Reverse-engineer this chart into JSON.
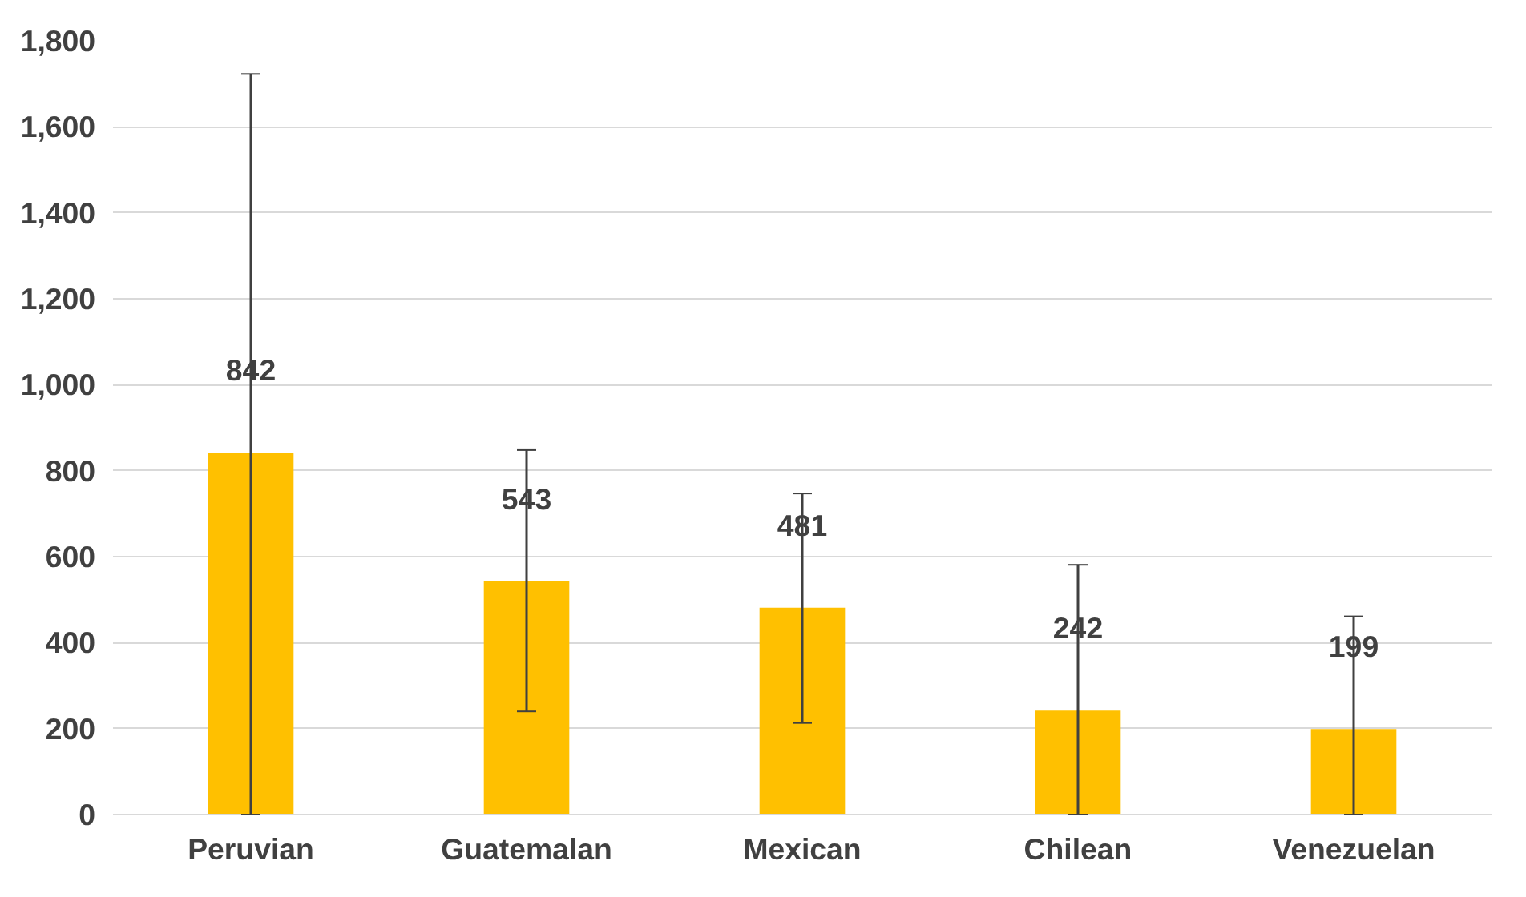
{
  "chart_data": {
    "type": "bar",
    "categories": [
      "Peruvian",
      "Guatemalan",
      "Mexican",
      "Chilean",
      "Venezuelan"
    ],
    "values": [
      842,
      543,
      481,
      242,
      199
    ],
    "errors": [
      [
        0,
        1723
      ],
      [
        240,
        848
      ],
      [
        213,
        747
      ],
      [
        0,
        581
      ],
      [
        0,
        461
      ]
    ],
    "color": "#ffc000",
    "data_labels": true,
    "ylim": [
      0,
      1800
    ],
    "yticks": [
      0,
      {
        "value": 200,
        "label": "200"
      },
      {
        "value": 400,
        "label": "400"
      },
      {
        "value": 600,
        "label": "600"
      },
      {
        "value": 800,
        "label": "800"
      },
      {
        "value": 1000,
        "label": "1,000"
      },
      {
        "value": 1200,
        "label": "1,200"
      },
      {
        "value": 1400,
        "label": "1,400"
      },
      {
        "value": 1600,
        "label": "1,600"
      },
      {
        "value": 1800,
        "label": "1,800"
      }
    ],
    "grid": "y"
  }
}
